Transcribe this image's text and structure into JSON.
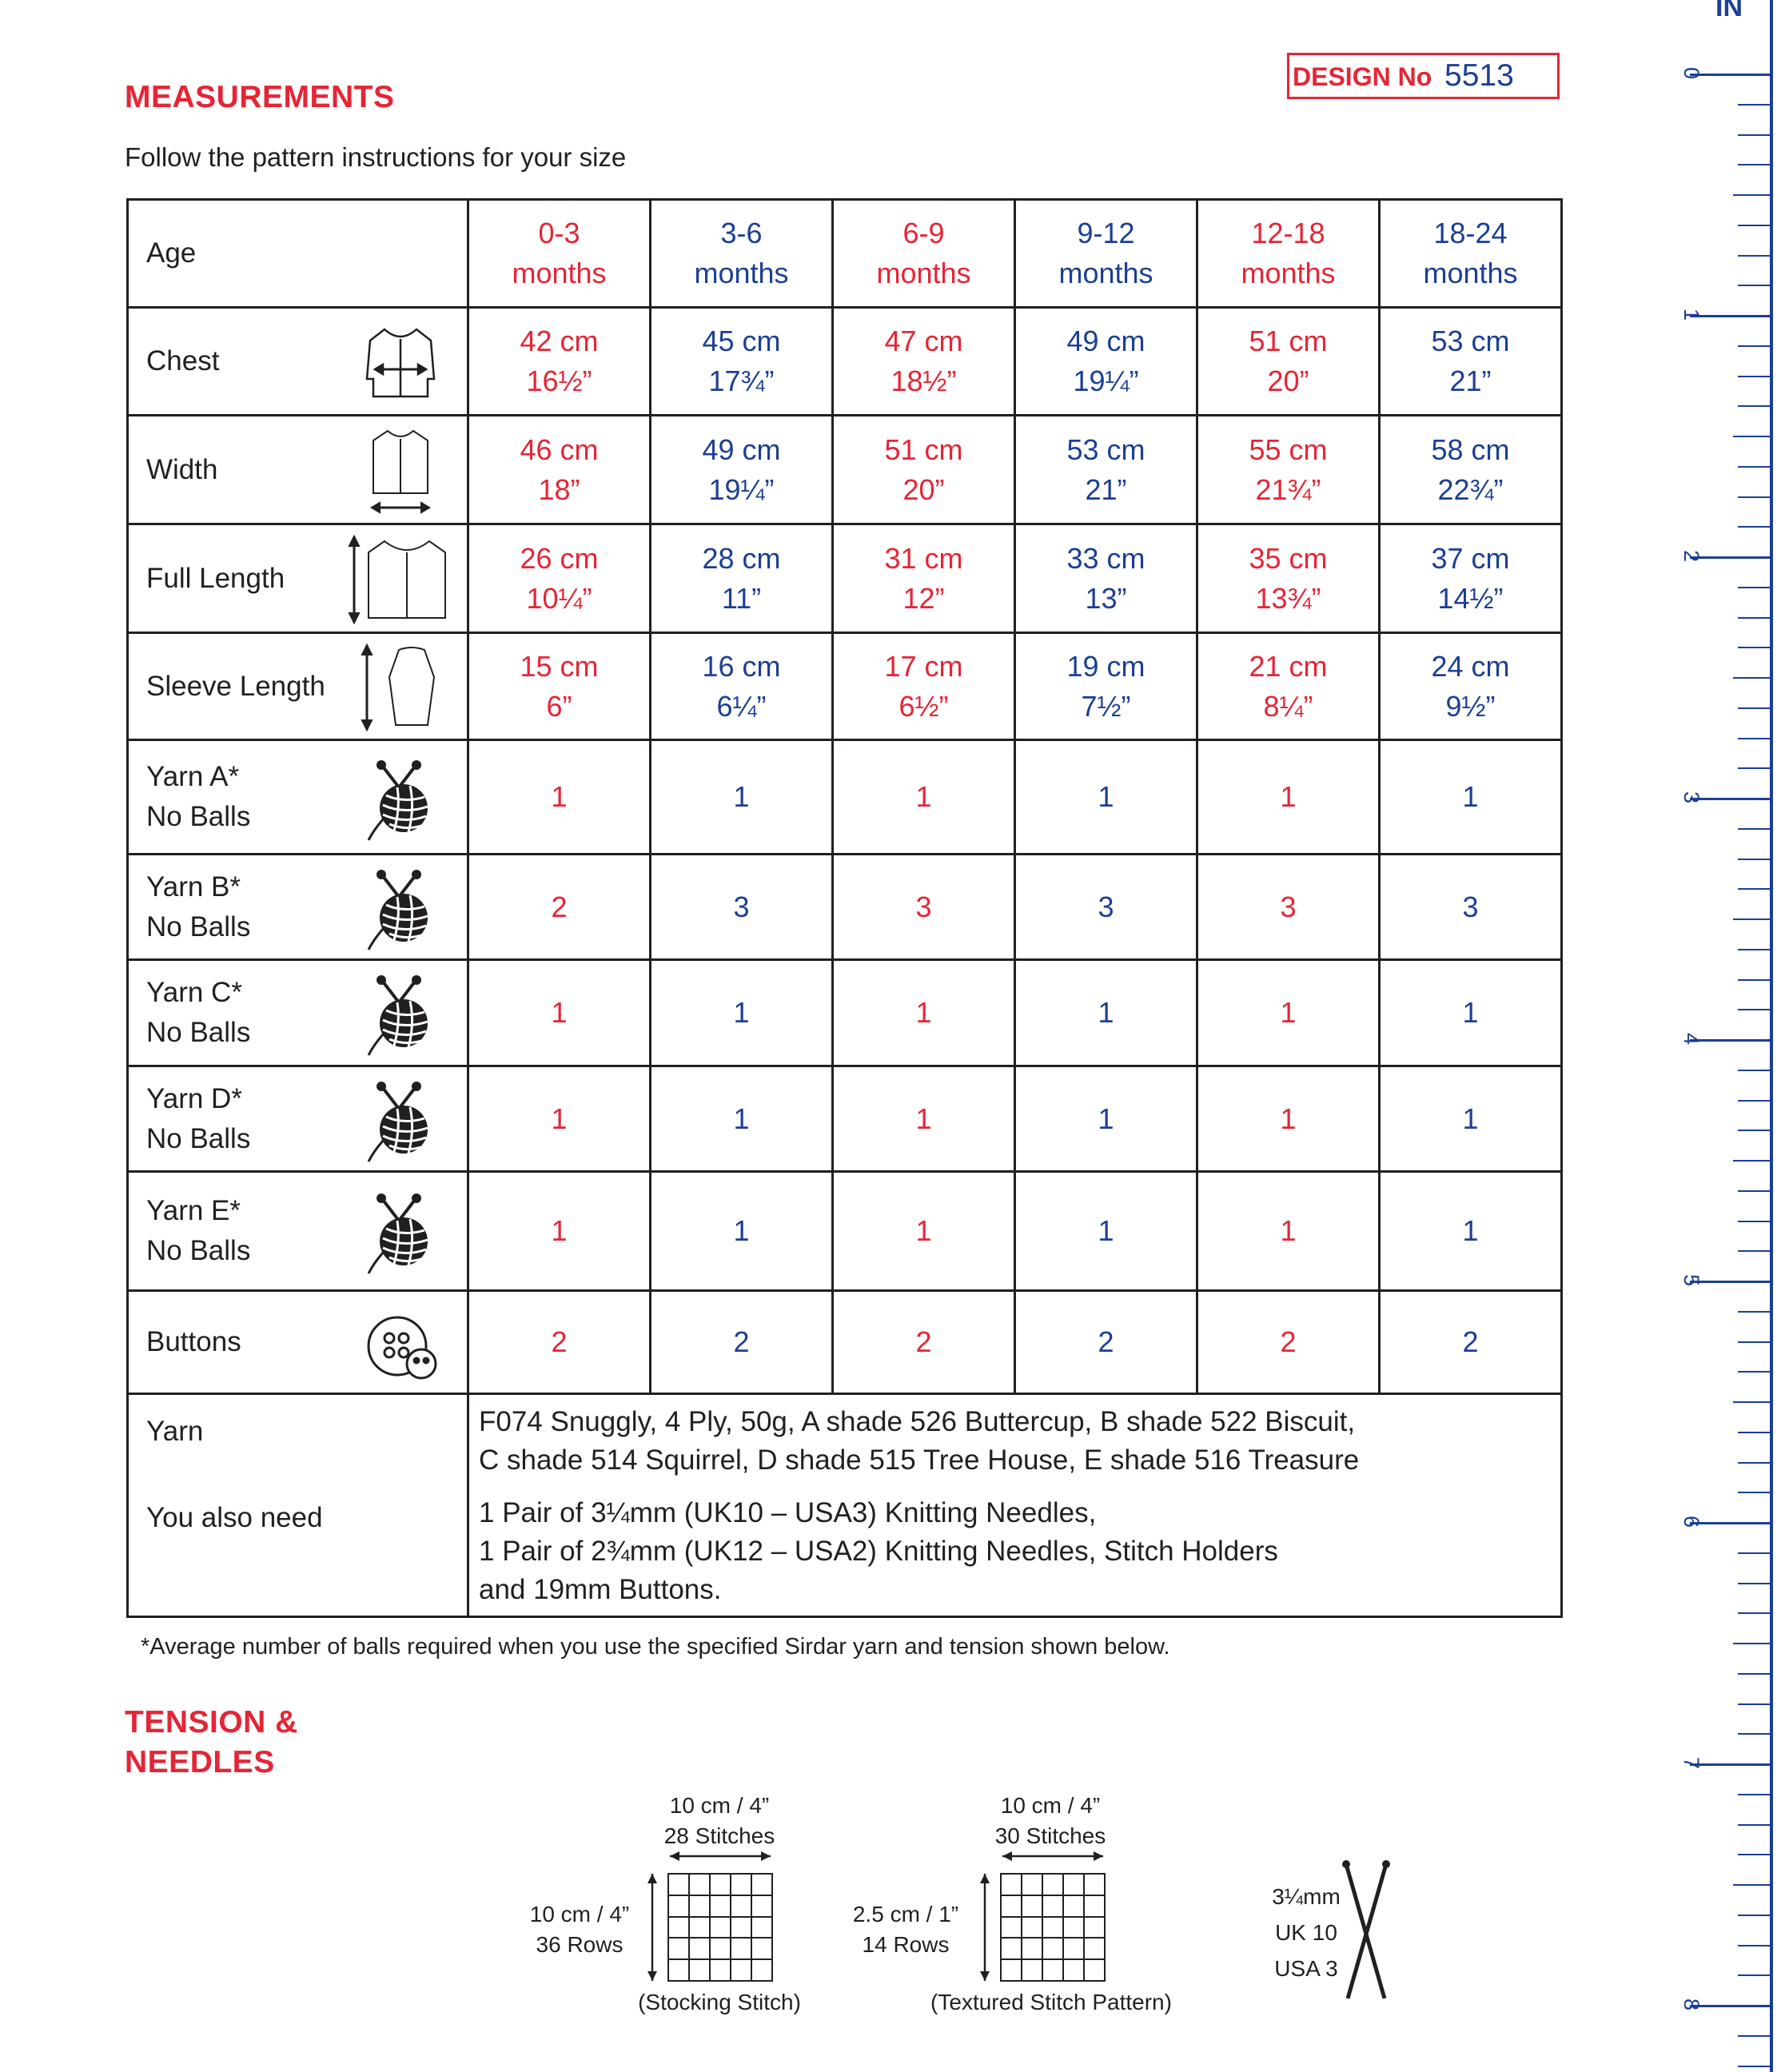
{
  "design": {
    "label": "DESIGN No",
    "number": "5513"
  },
  "measurements_heading": "MEASUREMENTS",
  "subtitle": "Follow the pattern instructions for your size",
  "table": {
    "header_label": "Age",
    "ages": [
      {
        "line1": "0-3",
        "line2": "months"
      },
      {
        "line1": "3-6",
        "line2": "months"
      },
      {
        "line1": "6-9",
        "line2": "months"
      },
      {
        "line1": "9-12",
        "line2": "months"
      },
      {
        "line1": "12-18",
        "line2": "months"
      },
      {
        "line1": "18-24",
        "line2": "months"
      }
    ],
    "rows": [
      {
        "label": "Chest",
        "icon": "chest-garment-icon",
        "values": [
          [
            "42 cm",
            "16½”"
          ],
          [
            "45 cm",
            "17¾”"
          ],
          [
            "47 cm",
            "18½”"
          ],
          [
            "49 cm",
            "19¼”"
          ],
          [
            "51 cm",
            "20”"
          ],
          [
            "53 cm",
            "21”"
          ]
        ]
      },
      {
        "label": "Width",
        "icon": "width-garment-icon",
        "values": [
          [
            "46 cm",
            "18”"
          ],
          [
            "49 cm",
            "19¼”"
          ],
          [
            "51 cm",
            "20”"
          ],
          [
            "53 cm",
            "21”"
          ],
          [
            "55 cm",
            "21¾”"
          ],
          [
            "58 cm",
            "22¾”"
          ]
        ]
      },
      {
        "label": "Full Length",
        "icon": "length-garment-icon",
        "values": [
          [
            "26 cm",
            "10¼”"
          ],
          [
            "28 cm",
            "11”"
          ],
          [
            "31 cm",
            "12”"
          ],
          [
            "33 cm",
            "13”"
          ],
          [
            "35 cm",
            "13¾”"
          ],
          [
            "37 cm",
            "14½”"
          ]
        ]
      },
      {
        "label": "Sleeve Length",
        "icon": "sleeve-icon",
        "values": [
          [
            "15 cm",
            "6”"
          ],
          [
            "16 cm",
            "6¼”"
          ],
          [
            "17 cm",
            "6½”"
          ],
          [
            "19 cm",
            "7½”"
          ],
          [
            "21 cm",
            "8¼”"
          ],
          [
            "24 cm",
            "9½”"
          ]
        ]
      }
    ],
    "yarn_rows": [
      {
        "label1": "Yarn A*",
        "label2": "No Balls",
        "values": [
          "1",
          "1",
          "1",
          "1",
          "1",
          "1"
        ]
      },
      {
        "label1": "Yarn B*",
        "label2": "No Balls",
        "values": [
          "2",
          "3",
          "3",
          "3",
          "3",
          "3"
        ]
      },
      {
        "label1": "Yarn C*",
        "label2": "No Balls",
        "values": [
          "1",
          "1",
          "1",
          "1",
          "1",
          "1"
        ]
      },
      {
        "label1": "Yarn D*",
        "label2": "No Balls",
        "values": [
          "1",
          "1",
          "1",
          "1",
          "1",
          "1"
        ]
      },
      {
        "label1": "Yarn E*",
        "label2": "No Balls",
        "values": [
          "1",
          "1",
          "1",
          "1",
          "1",
          "1"
        ]
      }
    ],
    "buttons_row": {
      "label": "Buttons",
      "values": [
        "2",
        "2",
        "2",
        "2",
        "2",
        "2"
      ]
    },
    "yarn_label": "Yarn",
    "yarn_text_1": "F074 Snuggly, 4 Ply, 50g, A shade 526 Buttercup, B shade 522 Biscuit,",
    "yarn_text_2": "C shade 514 Squirrel, D shade 515 Tree House, E shade 516 Treasure",
    "also_label": "You also need",
    "also_text_1": "1 Pair of 3¼mm (UK10 – USA3) Knitting Needles,",
    "also_text_2": "1 Pair of 2¾mm (UK12 – USA2) Knitting Needles, Stitch Holders",
    "also_text_3": "and 19mm Buttons."
  },
  "footnote": "*Average number of balls required when you use the specified Sirdar yarn and tension shown below.",
  "tension_heading_1": "TENSION &",
  "tension_heading_2": "NEEDLES",
  "tension": {
    "stocking": {
      "width": "10 cm / 4”",
      "stitches": "28 Stitches",
      "height": "10 cm / 4”",
      "rows": "36 Rows",
      "caption": "(Stocking Stitch)"
    },
    "textured": {
      "width": "10 cm / 4”",
      "stitches": "30 Stitches",
      "height": "2.5 cm / 1”",
      "rows": "14 Rows",
      "caption": "(Textured Stitch Pattern)"
    },
    "needle": {
      "size": "3¼mm",
      "uk": "UK 10",
      "usa": "USA 3"
    }
  },
  "ruler": {
    "unit": "IN",
    "numbers": [
      "0",
      "1",
      "2",
      "3",
      "4",
      "5",
      "6",
      "7",
      "8"
    ]
  },
  "colors": {
    "red": "#e52535",
    "blue": "#1b3f95",
    "ink": "#231f20"
  }
}
